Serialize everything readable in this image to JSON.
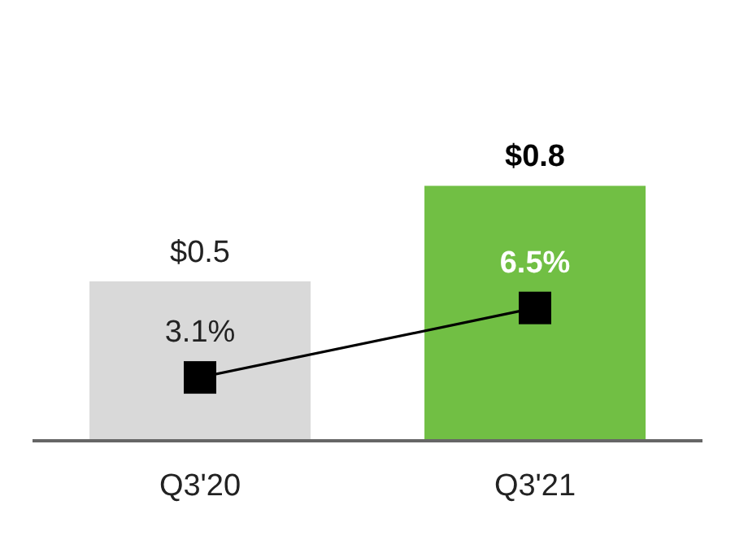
{
  "chart_data": {
    "type": "bar",
    "categories": [
      "Q3'20",
      "Q3'21"
    ],
    "series": [
      {
        "colors": [
          "#d9d9d9",
          "#71bf44"
        ],
        "values": [
          0.5,
          0.8
        ],
        "value_labels": [
          "$0.5",
          "$0.8"
        ]
      },
      {
        "type": "line",
        "axis": "y2",
        "color": "#000000",
        "values": [
          3.1,
          6.5
        ],
        "value_labels": [
          "3.1%",
          "6.5%"
        ]
      }
    ],
    "marker": "square"
  }
}
